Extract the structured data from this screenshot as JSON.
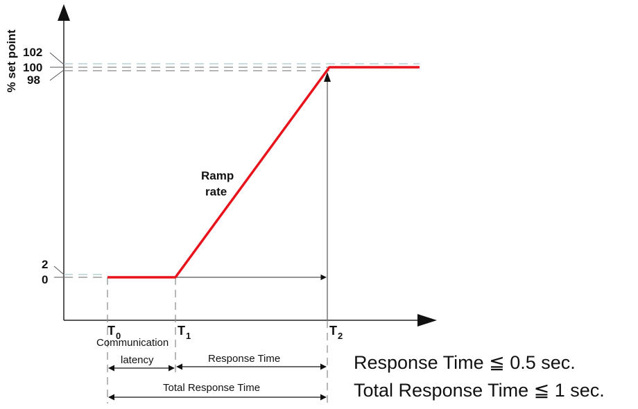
{
  "axis": {
    "ylabel": "% set point",
    "y_ticks": [
      "102",
      "100",
      "98",
      "2",
      "0"
    ]
  },
  "times": {
    "t0": {
      "main": "T",
      "sub": "0"
    },
    "t1": {
      "main": "T",
      "sub": "1"
    },
    "t2": {
      "main": "T",
      "sub": "2"
    }
  },
  "annotations": {
    "ramp_line1": "Ramp",
    "ramp_line2": "rate",
    "communication": "Communication",
    "latency": "latency",
    "response_time": "Response Time",
    "total_response_time": "Total Response Time"
  },
  "requirements": {
    "response": "Response Time ≦ 0.5 sec.",
    "total": "Total Response Time ≦ 1 sec."
  },
  "colors": {
    "signal": "#e8141c",
    "tolerance_band": "#a8c8cc",
    "axis": "#222222",
    "guide": "#888888"
  }
}
